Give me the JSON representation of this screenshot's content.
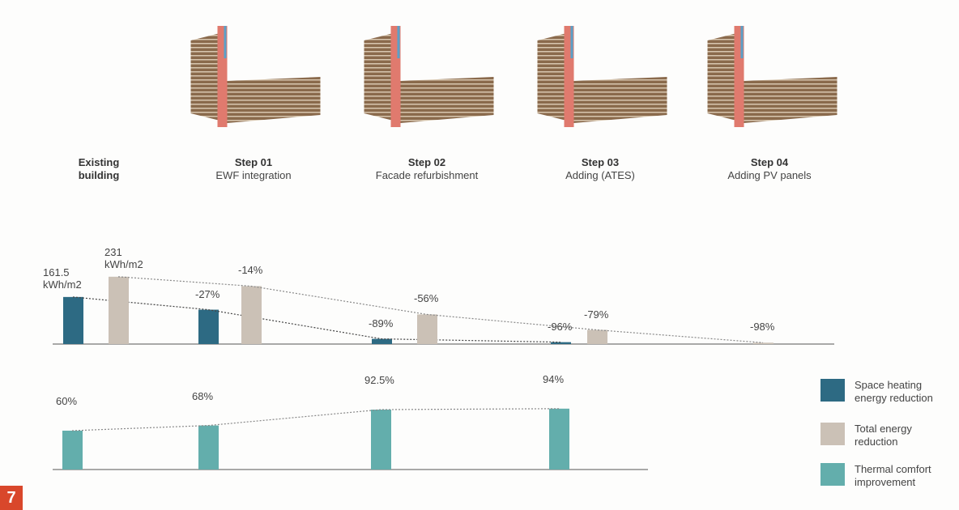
{
  "figure_number": "7",
  "stages": [
    {
      "title": "Existing building"
    },
    {
      "title": "Step 01",
      "subtitle": "EWF integration"
    },
    {
      "title": "Step 02",
      "subtitle": "Facade refurbishment"
    },
    {
      "title": "Step 03",
      "subtitle": "Adding (ATES)"
    },
    {
      "title": "Step 04",
      "subtitle": "Adding PV panels"
    }
  ],
  "chart_data": [
    {
      "type": "bar",
      "series": [
        {
          "name": "Space heating energy reduction",
          "color": "#2d6a83",
          "values": [
            161.5,
            -27,
            -89,
            -96,
            null
          ],
          "value_labels": [
            "161.5 kWh/m2",
            "-27%",
            "-89%",
            "-96%",
            null
          ]
        },
        {
          "name": "Total energy reduction",
          "color": "#cbc1b6",
          "values": [
            231,
            -14,
            -56,
            -79,
            -98
          ],
          "value_labels": [
            "231 kWh/m2",
            "-14%",
            "-56%",
            "-79%",
            "-98%"
          ]
        }
      ]
    },
    {
      "type": "bar",
      "series": [
        {
          "name": "Thermal comfort improvement",
          "color": "#63aeac",
          "values": [
            60,
            68,
            92.5,
            94
          ],
          "value_labels": [
            "60%",
            "68%",
            "92.5%",
            "94%"
          ]
        }
      ]
    }
  ]
}
